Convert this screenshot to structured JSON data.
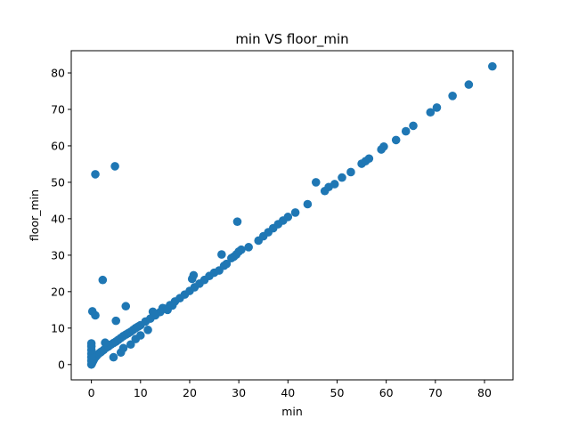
{
  "chart_data": {
    "type": "scatter",
    "title": "min VS floor_min",
    "xlabel": "min",
    "ylabel": "floor_min",
    "xlim": [
      -4.1,
      85.8
    ],
    "ylim": [
      -4.2,
      86.1
    ],
    "xticks": [
      0,
      10,
      20,
      30,
      40,
      50,
      60,
      70,
      80
    ],
    "yticks": [
      0,
      10,
      20,
      30,
      40,
      50,
      60,
      70,
      80
    ],
    "grid": false,
    "color": "#1f77b4",
    "series": [
      {
        "points": [
          [
            0,
            0
          ],
          [
            0.1,
            0.3
          ],
          [
            0.2,
            0.6
          ],
          [
            0.3,
            0.9
          ],
          [
            0.4,
            1.1
          ],
          [
            0.5,
            1.4
          ],
          [
            0.6,
            1.7
          ],
          [
            0.8,
            2.0
          ],
          [
            1.0,
            2.3
          ],
          [
            1.2,
            2.6
          ],
          [
            1.5,
            3.0
          ],
          [
            1.8,
            3.3
          ],
          [
            2.0,
            3.5
          ],
          [
            2.5,
            4.0
          ],
          [
            3.0,
            4.6
          ],
          [
            3.5,
            5.0
          ],
          [
            4.0,
            5.5
          ],
          [
            4.5,
            5.9
          ],
          [
            5.0,
            6.3
          ],
          [
            5.5,
            6.8
          ],
          [
            6.0,
            7.3
          ],
          [
            6.5,
            7.8
          ],
          [
            7.0,
            8.2
          ],
          [
            7.5,
            8.6
          ],
          [
            8.0,
            9.0
          ],
          [
            8.5,
            9.5
          ],
          [
            9.0,
            10.0
          ],
          [
            9.5,
            10.4
          ],
          [
            10.0,
            10.8
          ],
          [
            11.0,
            11.8
          ],
          [
            12.0,
            12.6
          ],
          [
            13.0,
            13.5
          ],
          [
            14.0,
            14.4
          ],
          [
            15.0,
            15.3
          ],
          [
            16.0,
            16.3
          ],
          [
            17.0,
            17.3
          ],
          [
            18.0,
            18.2
          ],
          [
            19.0,
            19.2
          ],
          [
            20.0,
            20.2
          ],
          [
            21.0,
            21.2
          ],
          [
            22.0,
            22.2
          ],
          [
            23.0,
            23.2
          ],
          [
            24.0,
            24.3
          ],
          [
            25.0,
            25.2
          ],
          [
            26.0,
            25.8
          ],
          [
            27.0,
            27.1
          ],
          [
            27.5,
            27.6
          ],
          [
            28.5,
            29.2
          ],
          [
            29.0,
            29.6
          ],
          [
            29.5,
            30.2
          ],
          [
            30.0,
            31.0
          ],
          [
            30.5,
            31.5
          ],
          [
            32.0,
            32.2
          ],
          [
            34.0,
            34.0
          ],
          [
            35.0,
            35.2
          ],
          [
            36.0,
            36.3
          ],
          [
            37.0,
            37.4
          ],
          [
            38.0,
            38.5
          ],
          [
            39.0,
            39.5
          ],
          [
            40.0,
            40.5
          ],
          [
            41.5,
            41.7
          ],
          [
            44.0,
            44.0
          ],
          [
            45.7,
            50.0
          ],
          [
            47.5,
            47.6
          ],
          [
            48.3,
            48.7
          ],
          [
            49.5,
            49.5
          ],
          [
            51.0,
            51.3
          ],
          [
            52.8,
            52.8
          ],
          [
            55.0,
            55.1
          ],
          [
            55.8,
            55.8
          ],
          [
            56.5,
            56.5
          ],
          [
            59.0,
            59.0
          ],
          [
            59.5,
            59.8
          ],
          [
            62.0,
            61.6
          ],
          [
            64.0,
            64.0
          ],
          [
            65.5,
            65.5
          ],
          [
            69.0,
            69.2
          ],
          [
            70.3,
            70.5
          ],
          [
            73.5,
            73.7
          ],
          [
            76.8,
            76.8
          ],
          [
            81.6,
            81.8
          ],
          [
            0,
            1
          ],
          [
            0,
            2
          ],
          [
            0,
            3
          ],
          [
            0,
            4
          ],
          [
            0,
            5
          ],
          [
            0,
            5.8
          ],
          [
            0.2,
            14.6
          ],
          [
            0.8,
            13.5
          ],
          [
            0.8,
            52.2
          ],
          [
            2.3,
            23.2
          ],
          [
            2.8,
            6.0
          ],
          [
            4.5,
            2.0
          ],
          [
            4.8,
            54.4
          ],
          [
            5.0,
            12.0
          ],
          [
            6.0,
            3.3
          ],
          [
            6.5,
            4.5
          ],
          [
            7.0,
            16.0
          ],
          [
            8.0,
            5.5
          ],
          [
            9.0,
            7.0
          ],
          [
            10.0,
            8.0
          ],
          [
            11.5,
            9.5
          ],
          [
            12.5,
            14.5
          ],
          [
            14.5,
            15.5
          ],
          [
            15.5,
            15.0
          ],
          [
            20.5,
            23.5
          ],
          [
            20.8,
            24.5
          ],
          [
            26.5,
            30.2
          ],
          [
            29.7,
            39.2
          ],
          [
            16.5,
            16.2
          ]
        ]
      }
    ]
  }
}
